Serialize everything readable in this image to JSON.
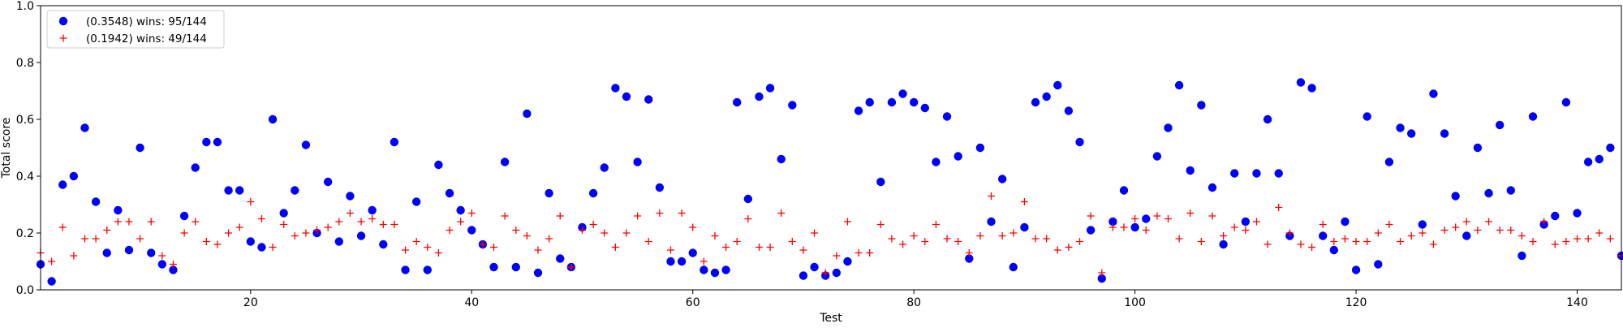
{
  "chart_data": {
    "type": "scatter",
    "title": "",
    "xlabel": "Test",
    "ylabel": "Total score",
    "xlim": [
      1,
      144
    ],
    "ylim": [
      0,
      1.0
    ],
    "x_ticks": [
      20,
      40,
      60,
      80,
      100,
      120,
      140
    ],
    "y_ticks": [
      0.0,
      0.2,
      0.4,
      0.6,
      0.8,
      1.0
    ],
    "grid": false,
    "legend_position": "top-left",
    "x": [
      1,
      2,
      3,
      4,
      5,
      6,
      7,
      8,
      9,
      10,
      11,
      12,
      13,
      14,
      15,
      16,
      17,
      18,
      19,
      20,
      21,
      22,
      23,
      24,
      25,
      26,
      27,
      28,
      29,
      30,
      31,
      32,
      33,
      34,
      35,
      36,
      37,
      38,
      39,
      40,
      41,
      42,
      43,
      44,
      45,
      46,
      47,
      48,
      49,
      50,
      51,
      52,
      53,
      54,
      55,
      56,
      57,
      58,
      59,
      60,
      61,
      62,
      63,
      64,
      65,
      66,
      67,
      68,
      69,
      70,
      71,
      72,
      73,
      74,
      75,
      76,
      77,
      78,
      79,
      80,
      81,
      82,
      83,
      84,
      85,
      86,
      87,
      88,
      89,
      90,
      91,
      92,
      93,
      94,
      95,
      96,
      97,
      98,
      99,
      100,
      101,
      102,
      103,
      104,
      105,
      106,
      107,
      108,
      109,
      110,
      111,
      112,
      113,
      114,
      115,
      116,
      117,
      118,
      119,
      120,
      121,
      122,
      123,
      124,
      125,
      126,
      127,
      128,
      129,
      130,
      131,
      132,
      133,
      134,
      135,
      136,
      137,
      138,
      139,
      140,
      141,
      142,
      143,
      144
    ],
    "series": [
      {
        "name": "(0.3548) wins: 95/144",
        "color": "#0000ff",
        "marker": "circle",
        "values": [
          0.09,
          0.03,
          0.37,
          0.4,
          0.57,
          0.31,
          0.13,
          0.28,
          0.14,
          0.5,
          0.13,
          0.09,
          0.07,
          0.26,
          0.43,
          0.52,
          0.52,
          0.35,
          0.35,
          0.17,
          0.15,
          0.6,
          0.27,
          0.35,
          0.51,
          0.2,
          0.38,
          0.17,
          0.33,
          0.19,
          0.28,
          0.16,
          0.52,
          0.07,
          0.31,
          0.07,
          0.44,
          0.34,
          0.28,
          0.21,
          0.16,
          0.08,
          0.45,
          0.08,
          0.62,
          0.06,
          0.34,
          0.11,
          0.08,
          0.22,
          0.34,
          0.43,
          0.71,
          0.68,
          0.45,
          0.67,
          0.36,
          0.1,
          0.1,
          0.13,
          0.07,
          0.06,
          0.07,
          0.66,
          0.32,
          0.68,
          0.71,
          0.46,
          0.65,
          0.05,
          0.08,
          0.05,
          0.06,
          0.1,
          0.63,
          0.66,
          0.38,
          0.66,
          0.69,
          0.66,
          0.64,
          0.45,
          0.61,
          0.47,
          0.11,
          0.5,
          0.24,
          0.39,
          0.08,
          0.22,
          0.66,
          0.68,
          0.72,
          0.63,
          0.52,
          0.21,
          0.04,
          0.24,
          0.35,
          0.22,
          0.25,
          0.47,
          0.57,
          0.72,
          0.42,
          0.65,
          0.36,
          0.16,
          0.41,
          0.24,
          0.41,
          0.6,
          0.41,
          0.19,
          0.73,
          0.71,
          0.19,
          0.14,
          0.24,
          0.07,
          0.61,
          0.09,
          0.45,
          0.57,
          0.55,
          0.23,
          0.69,
          0.55,
          0.33,
          0.19,
          0.5,
          0.34,
          0.58,
          0.35,
          0.12,
          0.61,
          0.23,
          0.26,
          0.66,
          0.27,
          0.45,
          0.46,
          0.5,
          0.12
        ]
      },
      {
        "name": "(0.1942) wins: 49/144",
        "color": "#ff0000",
        "marker": "plus",
        "values": [
          0.13,
          0.1,
          0.22,
          0.12,
          0.18,
          0.18,
          0.21,
          0.24,
          0.24,
          0.18,
          0.24,
          0.12,
          0.09,
          0.2,
          0.24,
          0.17,
          0.16,
          0.2,
          0.22,
          0.31,
          0.25,
          0.15,
          0.23,
          0.19,
          0.2,
          0.21,
          0.22,
          0.24,
          0.27,
          0.24,
          0.25,
          0.23,
          0.23,
          0.14,
          0.17,
          0.15,
          0.13,
          0.21,
          0.24,
          0.27,
          0.16,
          0.15,
          0.26,
          0.21,
          0.19,
          0.14,
          0.18,
          0.26,
          0.08,
          0.21,
          0.23,
          0.2,
          0.15,
          0.2,
          0.26,
          0.17,
          0.27,
          0.14,
          0.27,
          0.22,
          0.1,
          0.19,
          0.15,
          0.17,
          0.25,
          0.15,
          0.15,
          0.27,
          0.17,
          0.14,
          0.2,
          0.06,
          0.12,
          0.24,
          0.13,
          0.13,
          0.23,
          0.18,
          0.16,
          0.19,
          0.17,
          0.23,
          0.18,
          0.17,
          0.13,
          0.19,
          0.33,
          0.19,
          0.2,
          0.31,
          0.18,
          0.18,
          0.14,
          0.15,
          0.17,
          0.26,
          0.06,
          0.22,
          0.22,
          0.25,
          0.21,
          0.26,
          0.25,
          0.18,
          0.27,
          0.17,
          0.26,
          0.19,
          0.22,
          0.21,
          0.24,
          0.16,
          0.29,
          0.2,
          0.16,
          0.15,
          0.23,
          0.17,
          0.18,
          0.17,
          0.17,
          0.2,
          0.23,
          0.17,
          0.19,
          0.2,
          0.16,
          0.21,
          0.22,
          0.24,
          0.21,
          0.24,
          0.21,
          0.21,
          0.19,
          0.17,
          0.24,
          0.16,
          0.17,
          0.18,
          0.18,
          0.2,
          0.18,
          0.12
        ]
      }
    ]
  }
}
